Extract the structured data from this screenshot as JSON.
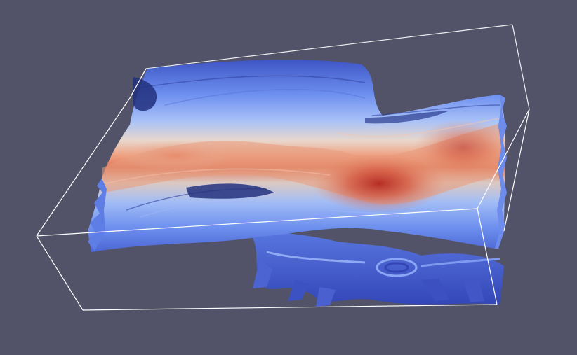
{
  "scene": {
    "background_color": "#525368",
    "outline_color": "#ffffff",
    "colormap": [
      "#3b4cc0",
      "#7b9ff9",
      "#c0d4f5",
      "#f2cbb7",
      "#ee8468",
      "#b40426"
    ],
    "render": "3d-flow-surface-with-bounding-box"
  }
}
